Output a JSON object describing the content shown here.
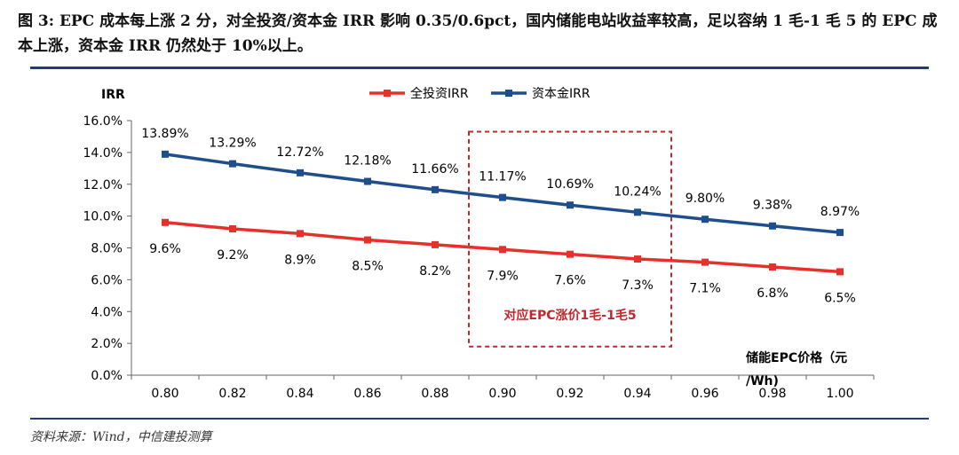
{
  "page": {
    "title": "图 3: EPC 成本每上涨 2 分，对全投资/资本金 IRR 影响 0.35/0.6pct，国内储能电站收益率较高，足以容纳 1 毛-1 毛 5 的 EPC 成本上涨，资本金 IRR 仍然处于 10%以上。",
    "source": "资料来源：Wind，中信建投测算"
  },
  "chart_data": {
    "type": "line",
    "ylabel": "IRR",
    "xlabel_line1": "储能EPC价格（元",
    "xlabel_line2": "/Wh)",
    "categories": [
      "0.80",
      "0.82",
      "0.84",
      "0.86",
      "0.88",
      "0.90",
      "0.92",
      "0.94",
      "0.96",
      "0.98",
      "1.00"
    ],
    "x": [
      0.8,
      0.82,
      0.84,
      0.86,
      0.88,
      0.9,
      0.92,
      0.94,
      0.96,
      0.98,
      1.0
    ],
    "ylim": [
      0,
      16
    ],
    "yticks": [
      "0.0%",
      "2.0%",
      "4.0%",
      "6.0%",
      "8.0%",
      "10.0%",
      "12.0%",
      "14.0%",
      "16.0%"
    ],
    "series": [
      {
        "name": "全投资IRR",
        "color": "#e8302a",
        "values": [
          9.6,
          9.2,
          8.9,
          8.5,
          8.2,
          7.9,
          7.6,
          7.3,
          7.1,
          6.8,
          6.5
        ],
        "labels": [
          "9.6%",
          "9.2%",
          "8.9%",
          "8.5%",
          "8.2%",
          "7.9%",
          "7.6%",
          "7.3%",
          "7.1%",
          "6.8%",
          "6.5%"
        ]
      },
      {
        "name": "资本金IRR",
        "color": "#1f4e8c",
        "values": [
          13.89,
          13.29,
          12.72,
          12.18,
          11.66,
          11.17,
          10.69,
          10.24,
          9.8,
          9.38,
          8.97
        ],
        "labels": [
          "13.89%",
          "13.29%",
          "12.72%",
          "12.18%",
          "11.66%",
          "11.17%",
          "10.69%",
          "10.24%",
          "9.80%",
          "9.38%",
          "8.97%"
        ]
      }
    ],
    "annotation": {
      "text": "对应EPC涨价1毛-1毛5",
      "color": "#c0282d",
      "x_range": [
        0.89,
        0.95
      ],
      "y_range": [
        1.8,
        15.3
      ]
    },
    "legend_position": "top-center",
    "grid": false
  }
}
